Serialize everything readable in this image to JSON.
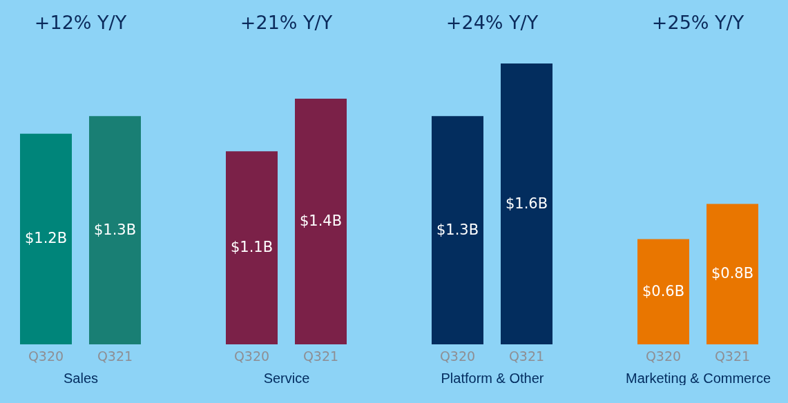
{
  "chart_data": [
    {
      "type": "bar",
      "title": "+12% Y/Y",
      "xlabel": "Sales",
      "categories": [
        "Q320",
        "Q321"
      ],
      "values": [
        1.2,
        1.3
      ],
      "colors": [
        "#00857a",
        "#197f74"
      ],
      "value_labels": [
        "$1.2B",
        "$1.3B"
      ],
      "tick_labels": "x"
    },
    {
      "type": "bar",
      "title": "+21% Y/Y",
      "xlabel": "Service",
      "categories": [
        "Q320",
        "Q321"
      ],
      "values": [
        1.1,
        1.4
      ],
      "colors": [
        "#7b2148",
        "#7b2148"
      ],
      "value_labels": [
        "$1.1B",
        "$1.4B"
      ],
      "tick_labels": "x"
    },
    {
      "type": "bar",
      "title": "+24% Y/Y",
      "xlabel": "Platform & Other",
      "categories": [
        "Q320",
        "Q321"
      ],
      "values": [
        1.3,
        1.6
      ],
      "colors": [
        "#032d5e",
        "#032d5e"
      ],
      "value_labels": [
        "$1.3B",
        "$1.6B"
      ],
      "tick_labels": "x"
    },
    {
      "type": "bar",
      "title": "+25% Y/Y",
      "xlabel": "Marketing & Commerce",
      "categories": [
        "Q320",
        "Q321"
      ],
      "values": [
        0.6,
        0.8
      ],
      "colors": [
        "#e97600",
        "#e97600"
      ],
      "value_labels": [
        "$0.6B",
        "$0.8B"
      ],
      "tick_labels": "x"
    }
  ]
}
